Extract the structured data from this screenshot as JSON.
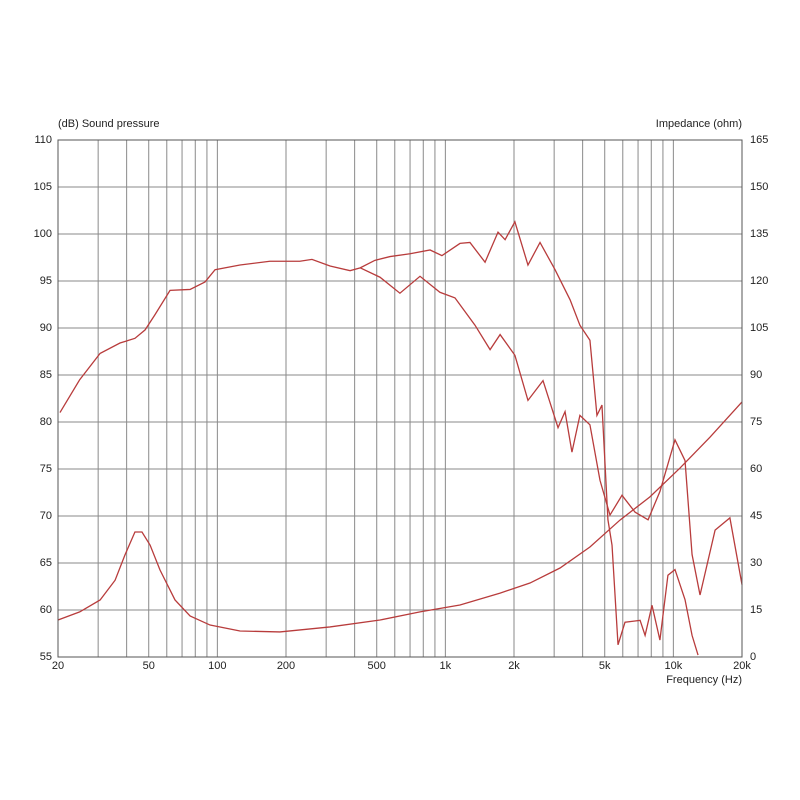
{
  "chart_data": {
    "type": "line",
    "y_label": "(dB)  Sound pressure",
    "y2_label": "Impedance  (ohm)",
    "x_label": "Frequency  (Hz)",
    "xscale": "log",
    "xlim": [
      20,
      20000
    ],
    "xticks": [
      20,
      50,
      100,
      200,
      500,
      {
        "value": 1000,
        "label": "1k"
      },
      {
        "value": 2000,
        "label": "2k"
      },
      {
        "value": 5000,
        "label": "5k"
      },
      {
        "value": 10000,
        "label": "10k"
      },
      {
        "value": 20000,
        "label": "20k"
      }
    ],
    "xgrid_minor": [
      30,
      40,
      60,
      70,
      80,
      90,
      300,
      400,
      600,
      700,
      800,
      900,
      3000,
      4000,
      6000,
      7000,
      8000,
      9000
    ],
    "ylim": [
      55,
      110
    ],
    "yticks": [
      55,
      60,
      65,
      70,
      75,
      80,
      85,
      90,
      95,
      100,
      105,
      110
    ],
    "y2lim": [
      0,
      165
    ],
    "y2ticks": [
      0,
      15,
      30,
      45,
      60,
      75,
      90,
      105,
      120,
      135,
      150,
      165
    ],
    "grid": true,
    "series": [
      {
        "color": "#b83c3c",
        "x": [
          20.4,
          24.9,
          30.6,
          37.4,
          43.5,
          48.2,
          53.2,
          62,
          75.9,
          88.3,
          97.7,
          125.7,
          170,
          230,
          260,
          312,
          382,
          423,
          491,
          572,
          700,
          857,
          966,
          1159,
          1282,
          1493,
          1702,
          1828,
          2018,
          2303,
          2601,
          3027,
          3524,
          3891,
          4306,
          4622,
          4862,
          5164,
          5382,
          5718,
          6137,
          7146,
          7516,
          8061,
          8730,
          9466,
          10164,
          11249,
          12078,
          12830
        ],
        "values": [
          81,
          84.5,
          87.3,
          88.4,
          88.9,
          89.8,
          91.4,
          94,
          94.1,
          94.9,
          96.2,
          96.7,
          97.1,
          97.1,
          97.3,
          96.6,
          96.1,
          96.4,
          97.2,
          97.6,
          97.9,
          98.3,
          97.7,
          99,
          99.1,
          97,
          100.2,
          99.4,
          101.3,
          96.7,
          99.1,
          96.2,
          93,
          90.3,
          88.7,
          80.7,
          81.8,
          69.6,
          66.9,
          56.3,
          58.7,
          58.9,
          57.3,
          60.5,
          56.8,
          63.7,
          64.3,
          61.1,
          57.3,
          55.2
        ]
      },
      {
        "color": "#b83c3c",
        "x": [
          423,
          517,
          632,
          774,
          946,
          1102,
          1349,
          1571,
          1738,
          2018,
          2303,
          2681,
          3120,
          3349,
          3591,
          3891,
          4306,
          4766,
          5273,
          5952,
          6797,
          7746,
          8730,
          10164,
          11249,
          12078,
          13090,
          15240,
          17700,
          20000
        ],
        "values": [
          96.4,
          95.4,
          93.7,
          95.5,
          93.8,
          93.2,
          90.3,
          87.7,
          89.3,
          87.1,
          82.3,
          84.4,
          79.4,
          81.1,
          76.8,
          80.7,
          79.7,
          73.8,
          70.1,
          72.2,
          70.4,
          69.6,
          72.6,
          78.1,
          75.9,
          65.9,
          61.6,
          68.5,
          69.8,
          62.7
        ]
      },
      {
        "color": "#b83c3c",
        "axis": "y2",
        "x": [
          20,
          24.9,
          30.6,
          35.6,
          39.3,
          43.5,
          46.7,
          50.7,
          56,
          65.2,
          75.9,
          92.9,
          125.7,
          188,
          312,
          517,
          774,
          1159,
          1738,
          2350,
          3183,
          4306,
          5833,
          7893,
          10690,
          14490,
          20000
        ],
        "values": [
          11.8,
          14.4,
          18.2,
          24.5,
          32.5,
          39.9,
          39.9,
          35.7,
          27.8,
          18.2,
          13.1,
          10.2,
          8.3,
          8,
          9.6,
          11.8,
          14.4,
          16.6,
          20.4,
          23.6,
          28.4,
          35.1,
          43.7,
          51.1,
          60.3,
          70.2,
          81.4
        ]
      }
    ]
  }
}
